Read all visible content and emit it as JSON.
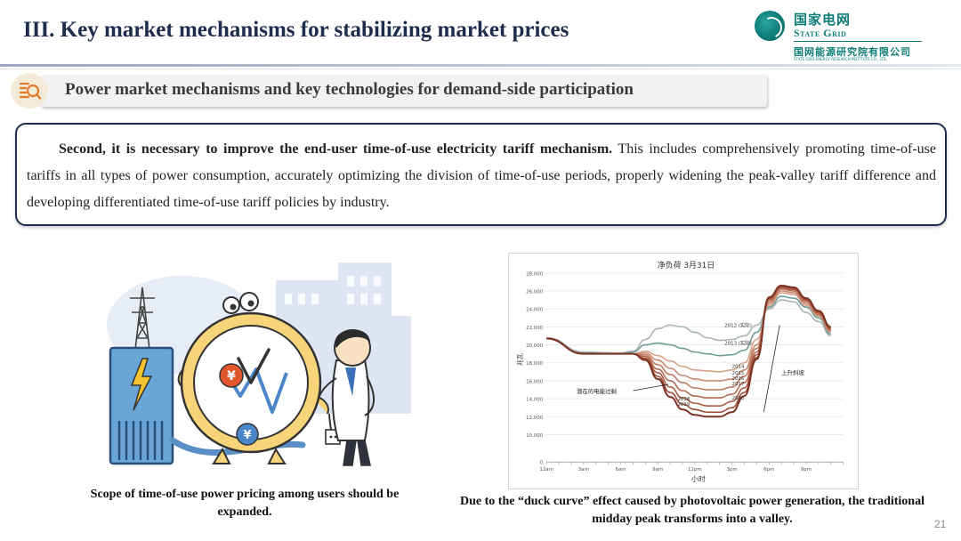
{
  "slide": {
    "title": "III. Key market mechanisms for stabilizing market prices",
    "page_number": "21"
  },
  "logo": {
    "cn": "国家电网",
    "en": "State Grid",
    "institute_cn": "国网能源研究院有限公司",
    "institute_en": "STATE GRID ENERGY RESEARCH INSTITUTE CO., LTD."
  },
  "subtitle": "Power market mechanisms and key technologies for demand-side participation",
  "paragraph": {
    "lead": "Second, it is necessary to improve the end-user time-of-use electricity tariff mechanism.",
    "body": " This includes comprehensively promoting time-of-use tariffs in all types of power consumption, accurately optimizing the division of time-of-use periods, properly widening the peak-valley tariff difference and developing differentiated time-of-use tariff policies by industry."
  },
  "left_figure": {
    "caption": "Scope of time-of-use power pricing among users should be expanded."
  },
  "right_figure": {
    "caption": "Due to the “duck curve” effect caused by photovoltaic power generation, the traditional midday peak transforms into a valley."
  },
  "chart_data": {
    "type": "line",
    "title": "净负荷 3月31日",
    "xlabel": "小时",
    "ylabel": "兆瓦",
    "ylim": [
      0,
      28000
    ],
    "yticks": [
      "0",
      "10,000",
      "12,000",
      "14,000",
      "16,000",
      "18,000",
      "20,000",
      "22,000",
      "24,000",
      "26,000",
      "28,000"
    ],
    "x_ticks": [
      "12am",
      "3am",
      "6am",
      "9am",
      "12pm",
      "3pm",
      "6pm",
      "9pm"
    ],
    "x": [
      0,
      3,
      6,
      7,
      8,
      9,
      10,
      11,
      12,
      13,
      14,
      15,
      16,
      17,
      18,
      19,
      20,
      21,
      22,
      23
    ],
    "series": [
      {
        "name": "2012 (实际)",
        "color": "#a9b4b4",
        "values": [
          20800,
          19200,
          19100,
          19300,
          20600,
          21800,
          22200,
          22000,
          21400,
          20800,
          20500,
          20600,
          21000,
          22200,
          24000,
          25000,
          24800,
          23600,
          22600,
          21000
        ]
      },
      {
        "name": "2013 (实际)",
        "color": "#6f9c98",
        "values": [
          20700,
          19100,
          19000,
          19200,
          20000,
          20200,
          20000,
          19600,
          19200,
          19000,
          18800,
          18900,
          19400,
          21400,
          24200,
          25400,
          25200,
          24200,
          23000,
          21200
        ]
      },
      {
        "name": "2014",
        "color": "#d6a28a",
        "values": [
          20700,
          19000,
          19000,
          19000,
          19300,
          18800,
          18200,
          17600,
          17200,
          17100,
          17000,
          17200,
          18000,
          20600,
          24400,
          25800,
          25600,
          24400,
          23200,
          21400
        ]
      },
      {
        "name": "2015",
        "color": "#c98a72",
        "values": [
          20700,
          19000,
          19000,
          19000,
          19100,
          18300,
          17400,
          16600,
          16200,
          16000,
          16000,
          16200,
          17200,
          20000,
          24600,
          26000,
          25800,
          24600,
          23300,
          21500
        ]
      },
      {
        "name": "2016",
        "color": "#bf7a62",
        "values": [
          20700,
          19000,
          19000,
          19000,
          18900,
          17800,
          16700,
          15800,
          15200,
          15000,
          15000,
          15300,
          16500,
          19600,
          24800,
          26200,
          26000,
          24800,
          23400,
          21600
        ]
      },
      {
        "name": "2017",
        "color": "#b46a52",
        "values": [
          20700,
          19000,
          19000,
          19000,
          18700,
          17300,
          16000,
          14900,
          14300,
          14100,
          14100,
          14500,
          15800,
          19200,
          25000,
          26300,
          26100,
          24900,
          23500,
          21700
        ]
      },
      {
        "name": "2018",
        "color": "#a95a43",
        "values": [
          20700,
          19000,
          19000,
          19000,
          18500,
          16900,
          15300,
          14100,
          13500,
          13200,
          13200,
          13700,
          15200,
          18900,
          25100,
          26400,
          26200,
          25000,
          23600,
          21800
        ]
      },
      {
        "name": "2019",
        "color": "#9c4a35",
        "values": [
          20700,
          19000,
          19000,
          19000,
          18400,
          16500,
          14700,
          13400,
          12800,
          12500,
          12500,
          13000,
          14700,
          18600,
          25200,
          26500,
          26300,
          25100,
          23700,
          21900
        ]
      },
      {
        "name": "2020",
        "color": "#7a3322",
        "values": [
          20700,
          19000,
          19000,
          19000,
          18300,
          16200,
          14200,
          12800,
          12200,
          12000,
          12000,
          12500,
          14300,
          18400,
          25300,
          26600,
          26400,
          25200,
          23800,
          22000
        ]
      }
    ],
    "annotations": [
      {
        "text": "潜在的电能过剩"
      },
      {
        "text": "上升斜坡"
      }
    ],
    "grid": true
  }
}
